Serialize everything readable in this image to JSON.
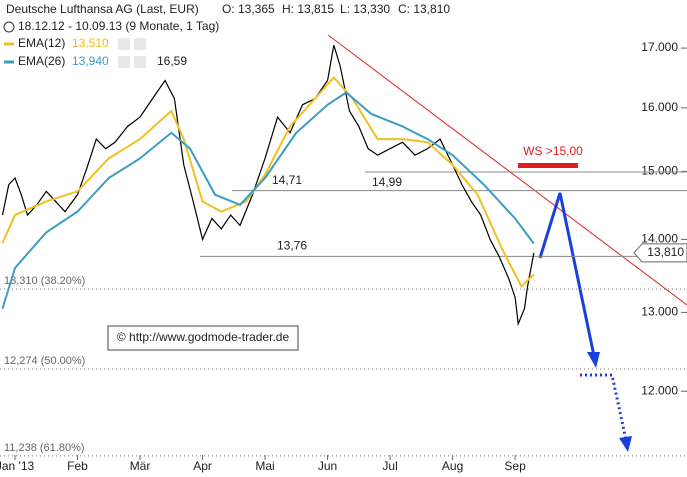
{
  "chart_data": {
    "type": "line",
    "title": "Deutsche Lufthansa AG (Last, EUR)",
    "ohlc": [
      "O: 13,365",
      "H: 13,815",
      "L: 13,330",
      "C: 13,810"
    ],
    "subtitle": "18.12.12 - 10.09.13 (9 Monate, 1 Tag)",
    "log_scale": true,
    "xlim": [
      -0.24,
      10.75
    ],
    "ylim": [
      11.0,
      17.85
    ],
    "xticks": [
      {
        "value": 0,
        "label": "Jan '13"
      },
      {
        "value": 1,
        "label": "Feb"
      },
      {
        "value": 2,
        "label": "Mär"
      },
      {
        "value": 3,
        "label": "Apr"
      },
      {
        "value": 4,
        "label": "Mai"
      },
      {
        "value": 5,
        "label": "Jun"
      },
      {
        "value": 6,
        "label": "Jul"
      },
      {
        "value": 7,
        "label": "Aug"
      },
      {
        "value": 8,
        "label": "Sep"
      }
    ],
    "yticks": [
      {
        "value": 12,
        "label": "12.000"
      },
      {
        "value": 13,
        "label": "13.000"
      },
      {
        "value": 14,
        "label": "14.000"
      },
      {
        "value": 15,
        "label": "15.000"
      },
      {
        "value": 16,
        "label": "16.000"
      },
      {
        "value": 17,
        "label": "17.000"
      }
    ],
    "grid": false,
    "price": {
      "color": "#000000",
      "x": [
        -0.2,
        -0.1,
        0.0,
        0.1,
        0.2,
        0.35,
        0.5,
        0.65,
        0.8,
        1.0,
        1.15,
        1.3,
        1.45,
        1.6,
        1.8,
        2.0,
        2.2,
        2.4,
        2.55,
        2.7,
        2.85,
        3.0,
        3.15,
        3.3,
        3.45,
        3.6,
        3.8,
        4.0,
        4.2,
        4.4,
        4.6,
        4.8,
        5.0,
        5.1,
        5.2,
        5.35,
        5.5,
        5.65,
        5.8,
        6.0,
        6.2,
        6.4,
        6.6,
        6.8,
        7.0,
        7.15,
        7.3,
        7.45,
        7.6,
        7.75,
        7.9,
        8.0,
        8.05,
        8.15,
        8.2,
        8.3
      ],
      "values": [
        14.35,
        14.8,
        14.9,
        14.65,
        14.35,
        14.5,
        14.7,
        14.55,
        14.4,
        14.65,
        15.05,
        15.5,
        15.35,
        15.45,
        15.7,
        15.85,
        16.15,
        16.45,
        16.15,
        15.1,
        14.55,
        14.0,
        14.3,
        14.15,
        14.35,
        14.2,
        14.65,
        15.2,
        15.85,
        15.6,
        16.05,
        16.15,
        16.45,
        17.05,
        16.7,
        15.95,
        15.7,
        15.35,
        15.25,
        15.35,
        15.45,
        15.25,
        15.35,
        15.5,
        15.1,
        14.8,
        14.55,
        14.35,
        14.0,
        13.75,
        13.45,
        13.2,
        12.85,
        13.05,
        13.35,
        13.81
      ],
      "last_label": "13,810"
    },
    "series": [
      {
        "name": "EMA(12)",
        "color": "#f0c020",
        "value_label": "13,510",
        "x": [
          -0.2,
          0,
          0.5,
          1,
          1.5,
          2,
          2.5,
          2.7,
          3,
          3.3,
          3.7,
          4,
          4.4,
          4.8,
          5.1,
          5.4,
          5.8,
          6.2,
          6.6,
          7,
          7.4,
          7.8,
          8.1,
          8.3
        ],
        "values": [
          13.95,
          14.35,
          14.55,
          14.7,
          15.2,
          15.5,
          15.95,
          15.5,
          14.55,
          14.4,
          14.55,
          14.95,
          15.7,
          16.15,
          16.5,
          16.15,
          15.5,
          15.5,
          15.45,
          15.1,
          14.65,
          13.85,
          13.35,
          13.51
        ]
      },
      {
        "name": "EMA(26)",
        "color": "#3a9ec0",
        "value_label": "13,940",
        "x": [
          -0.2,
          0,
          0.5,
          1,
          1.5,
          2,
          2.5,
          2.8,
          3.2,
          3.6,
          4,
          4.5,
          5,
          5.3,
          5.7,
          6.2,
          6.6,
          7,
          7.5,
          8,
          8.3
        ],
        "values": [
          13.05,
          13.6,
          14.1,
          14.4,
          14.9,
          15.2,
          15.6,
          15.35,
          14.65,
          14.5,
          14.9,
          15.6,
          16.05,
          16.25,
          15.9,
          15.7,
          15.5,
          15.25,
          14.8,
          14.3,
          13.94
        ]
      }
    ],
    "levels": [
      {
        "value": 14.99,
        "label": "14,99"
      },
      {
        "value": 14.71,
        "label": "14,71"
      },
      {
        "value": 13.76,
        "label": "13,76"
      }
    ],
    "fibs": [
      {
        "value": 13.31,
        "label": "13,310 (38.20%)"
      },
      {
        "value": 12.274,
        "label": "12,274 (50.00%)"
      },
      {
        "value": 11.238,
        "label": "11,238 (61.80%)"
      }
    ],
    "high_label": "16,59",
    "target_label": "WS >15,00",
    "copyright": "© http://www.godmode-trader.de"
  }
}
